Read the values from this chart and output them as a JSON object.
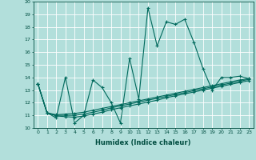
{
  "xlabel": "Humidex (Indice chaleur)",
  "bg_color": "#b2dfdb",
  "grid_color": "#ffffff",
  "line_color": "#00695c",
  "xlim": [
    -0.5,
    23.5
  ],
  "ylim": [
    10,
    20
  ],
  "xticks": [
    0,
    1,
    2,
    3,
    4,
    5,
    6,
    7,
    8,
    9,
    10,
    11,
    12,
    13,
    14,
    15,
    16,
    17,
    18,
    19,
    20,
    21,
    22,
    23
  ],
  "yticks": [
    10,
    11,
    12,
    13,
    14,
    15,
    16,
    17,
    18,
    19,
    20
  ],
  "series": [
    [
      13.5,
      11.2,
      10.8,
      14.0,
      10.4,
      11.0,
      13.8,
      13.2,
      12.0,
      10.4,
      15.5,
      12.3,
      19.5,
      16.5,
      18.4,
      18.2,
      18.6,
      16.8,
      14.7,
      13.0,
      14.0,
      14.0,
      14.1,
      13.9
    ],
    [
      13.5,
      11.2,
      11.05,
      11.1,
      11.15,
      11.25,
      11.4,
      11.55,
      11.7,
      11.85,
      12.0,
      12.15,
      12.3,
      12.45,
      12.6,
      12.75,
      12.9,
      13.05,
      13.2,
      13.35,
      13.5,
      13.65,
      13.8,
      13.9
    ],
    [
      13.5,
      11.2,
      11.0,
      11.0,
      11.0,
      11.1,
      11.25,
      11.4,
      11.6,
      11.75,
      11.9,
      12.05,
      12.2,
      12.35,
      12.5,
      12.65,
      12.8,
      12.95,
      13.1,
      13.25,
      13.4,
      13.55,
      13.7,
      13.85
    ],
    [
      13.5,
      11.2,
      10.95,
      10.9,
      10.85,
      10.95,
      11.1,
      11.25,
      11.45,
      11.6,
      11.75,
      11.9,
      12.05,
      12.2,
      12.4,
      12.55,
      12.7,
      12.85,
      13.0,
      13.15,
      13.3,
      13.45,
      13.6,
      13.75
    ]
  ]
}
